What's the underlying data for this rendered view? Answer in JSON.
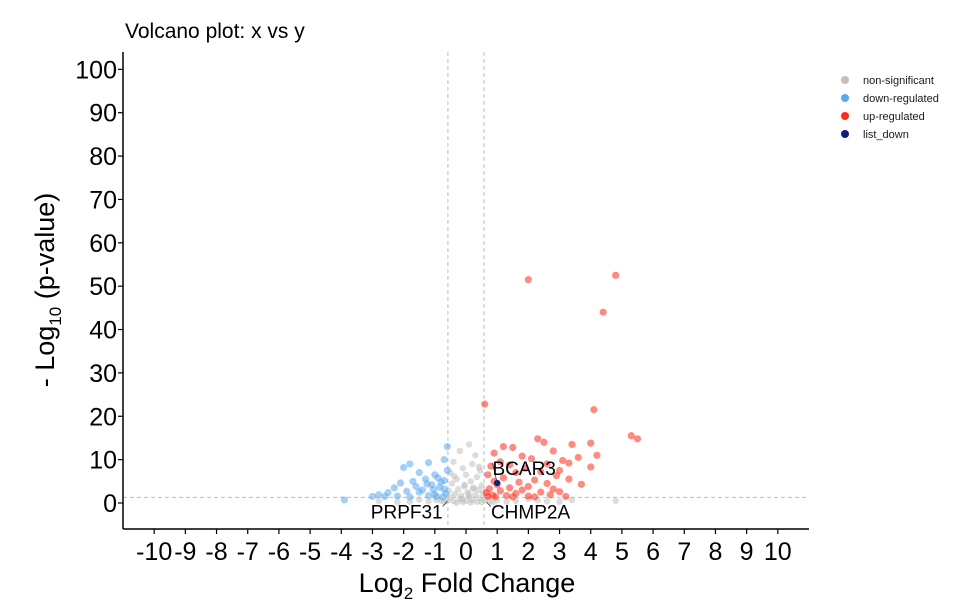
{
  "chart_data": {
    "type": "scatter",
    "title": "Volcano plot: x vs y",
    "xlabel": {
      "prefix": "Log",
      "sub": "2",
      "suffix": " Fold Change"
    },
    "ylabel": {
      "prefix": "- Log",
      "sub": "10",
      "suffix": " (p-value)"
    },
    "xlim": [
      -11,
      11
    ],
    "ylim": [
      -6,
      104
    ],
    "x_ticks": [
      -10,
      -9,
      -8,
      -7,
      -6,
      -5,
      -4,
      -3,
      -2,
      -1,
      0,
      1,
      2,
      3,
      4,
      5,
      6,
      7,
      8,
      9,
      10
    ],
    "y_ticks": [
      0,
      10,
      20,
      30,
      40,
      50,
      60,
      70,
      80,
      90,
      100
    ],
    "thresholds": {
      "x": [
        -0.58,
        0.58
      ],
      "y": 1.3
    },
    "grid": false,
    "legend_position": "top-right",
    "colors": {
      "non_significant": "#bfbfbf",
      "down_regulated": "#5aa8f0",
      "up_regulated": "#ff2a1a",
      "list_down": "#0c1f7a"
    },
    "series": [
      {
        "name": "non-significant",
        "color": "#bfbfbf",
        "points": [
          [
            0.1,
            13.5
          ],
          [
            -0.2,
            12.0
          ],
          [
            0.3,
            11.0
          ],
          [
            -0.4,
            9.5
          ],
          [
            0.2,
            9.0
          ],
          [
            -0.1,
            8.0
          ],
          [
            0.45,
            7.5
          ],
          [
            -0.5,
            7.0
          ],
          [
            0.0,
            6.5
          ],
          [
            0.35,
            6.0
          ],
          [
            -0.3,
            5.5
          ],
          [
            0.15,
            5.0
          ],
          [
            -0.45,
            4.5
          ],
          [
            0.5,
            4.0
          ],
          [
            -0.05,
            3.8
          ],
          [
            0.25,
            3.5
          ],
          [
            -0.25,
            3.2
          ],
          [
            0.4,
            3.0
          ],
          [
            -0.55,
            2.8
          ],
          [
            0.05,
            2.5
          ],
          [
            0.55,
            2.3
          ],
          [
            -0.35,
            2.1
          ],
          [
            0.3,
            1.9
          ],
          [
            -0.15,
            1.7
          ],
          [
            0.1,
            1.5
          ],
          [
            -0.5,
            1.3
          ],
          [
            0.45,
            1.1
          ],
          [
            -0.2,
            0.9
          ],
          [
            0.2,
            0.7
          ],
          [
            0.0,
            0.5
          ],
          [
            -0.4,
            0.4
          ],
          [
            0.35,
            0.3
          ],
          [
            -0.1,
            0.2
          ],
          [
            0.15,
            0.1
          ],
          [
            -0.3,
            0.05
          ],
          [
            0.5,
            0.15
          ],
          [
            -0.6,
            0.6
          ],
          [
            0.6,
            0.8
          ],
          [
            -0.7,
            0.3
          ],
          [
            0.75,
            0.4
          ],
          [
            -0.8,
            0.5
          ],
          [
            0.85,
            0.2
          ],
          [
            -0.95,
            0.7
          ],
          [
            1.0,
            0.6
          ],
          [
            -1.2,
            0.4
          ],
          [
            1.3,
            0.3
          ],
          [
            -1.5,
            0.8
          ],
          [
            1.6,
            0.5
          ],
          [
            -1.8,
            0.3
          ],
          [
            2.0,
            0.9
          ],
          [
            -2.2,
            0.2
          ],
          [
            2.3,
            0.6
          ],
          [
            2.6,
            0.4
          ],
          [
            -2.8,
            0.5
          ],
          [
            3.0,
            0.3
          ],
          [
            3.4,
            0.7
          ],
          [
            4.8,
            0.5
          ],
          [
            -0.05,
            4.2
          ],
          [
            0.08,
            2.0
          ],
          [
            -0.12,
            1.0
          ],
          [
            0.22,
            3.3
          ],
          [
            -0.38,
            6.2
          ],
          [
            0.42,
            8.3
          ]
        ]
      },
      {
        "name": "down-regulated",
        "color": "#5aa8f0",
        "points": [
          [
            -0.6,
            13.0
          ],
          [
            -0.7,
            10.0
          ],
          [
            -0.6,
            7.5
          ],
          [
            -1.2,
            9.3
          ],
          [
            -1.8,
            9.0
          ],
          [
            -2.0,
            8.2
          ],
          [
            -1.5,
            7.0
          ],
          [
            -1.0,
            6.5
          ],
          [
            -0.9,
            5.8
          ],
          [
            -1.3,
            5.5
          ],
          [
            -1.7,
            5.0
          ],
          [
            -2.1,
            4.6
          ],
          [
            -0.8,
            4.8
          ],
          [
            -1.1,
            4.2
          ],
          [
            -1.6,
            3.8
          ],
          [
            -2.3,
            3.5
          ],
          [
            -0.7,
            3.2
          ],
          [
            -1.4,
            3.0
          ],
          [
            -1.9,
            2.7
          ],
          [
            -2.5,
            2.4
          ],
          [
            -0.65,
            2.2
          ],
          [
            -1.0,
            2.0
          ],
          [
            -2.8,
            1.9
          ],
          [
            -1.2,
            1.7
          ],
          [
            -3.0,
            1.5
          ],
          [
            -0.75,
            1.4
          ],
          [
            -1.5,
            2.5
          ],
          [
            -2.2,
            1.6
          ],
          [
            -3.9,
            0.7
          ],
          [
            -2.6,
            1.5
          ],
          [
            -0.95,
            1.5
          ],
          [
            -1.8,
            1.4
          ],
          [
            -0.85,
            3.6
          ],
          [
            -1.25,
            4.4
          ],
          [
            -0.7,
            5.2
          ],
          [
            -1.05,
            3.1
          ]
        ]
      },
      {
        "name": "up-regulated",
        "color": "#ff2a1a",
        "points": [
          [
            4.8,
            52.5
          ],
          [
            2.0,
            51.5
          ],
          [
            4.4,
            44.0
          ],
          [
            0.6,
            22.8
          ],
          [
            4.1,
            21.5
          ],
          [
            5.3,
            15.5
          ],
          [
            5.5,
            14.8
          ],
          [
            2.3,
            14.8
          ],
          [
            2.5,
            14.0
          ],
          [
            3.4,
            13.5
          ],
          [
            4.0,
            13.8
          ],
          [
            1.2,
            13.0
          ],
          [
            1.5,
            12.8
          ],
          [
            2.8,
            12.0
          ],
          [
            0.9,
            11.5
          ],
          [
            1.8,
            10.8
          ],
          [
            3.6,
            10.5
          ],
          [
            4.2,
            11.0
          ],
          [
            2.1,
            10.2
          ],
          [
            3.1,
            9.8
          ],
          [
            1.1,
            9.5
          ],
          [
            3.3,
            9.2
          ],
          [
            2.6,
            9.0
          ],
          [
            1.4,
            8.8
          ],
          [
            4.0,
            8.3
          ],
          [
            0.8,
            8.5
          ],
          [
            1.9,
            8.0
          ],
          [
            3.0,
            7.5
          ],
          [
            2.4,
            7.2
          ],
          [
            1.6,
            7.0
          ],
          [
            0.7,
            6.5
          ],
          [
            2.9,
            6.3
          ],
          [
            3.3,
            5.5
          ],
          [
            1.2,
            5.8
          ],
          [
            2.2,
            5.3
          ],
          [
            0.9,
            5.0
          ],
          [
            1.7,
            4.8
          ],
          [
            3.7,
            4.3
          ],
          [
            2.6,
            4.5
          ],
          [
            1.0,
            4.2
          ],
          [
            2.0,
            3.8
          ],
          [
            1.4,
            3.5
          ],
          [
            0.75,
            3.3
          ],
          [
            2.8,
            3.2
          ],
          [
            1.8,
            3.0
          ],
          [
            3.0,
            2.6
          ],
          [
            1.1,
            2.8
          ],
          [
            2.4,
            2.5
          ],
          [
            0.65,
            2.4
          ],
          [
            1.6,
            2.2
          ],
          [
            2.7,
            1.9
          ],
          [
            0.85,
            1.8
          ],
          [
            1.3,
            1.7
          ],
          [
            2.0,
            1.6
          ],
          [
            0.7,
            1.5
          ],
          [
            3.2,
            1.5
          ],
          [
            2.2,
            1.4
          ],
          [
            1.5,
            1.4
          ],
          [
            0.95,
            1.45
          ]
        ]
      },
      {
        "name": "list_down",
        "color": "#0c1f7a",
        "points": [
          [
            1.0,
            4.6
          ]
        ]
      }
    ],
    "labels": [
      {
        "text": "BCAR3",
        "x": 1.0,
        "y": 4.6
      },
      {
        "text": "PRPF31",
        "x": -0.6,
        "y": 0.4
      },
      {
        "text": "CHMP2A",
        "x": 0.65,
        "y": 0.2
      }
    ]
  }
}
